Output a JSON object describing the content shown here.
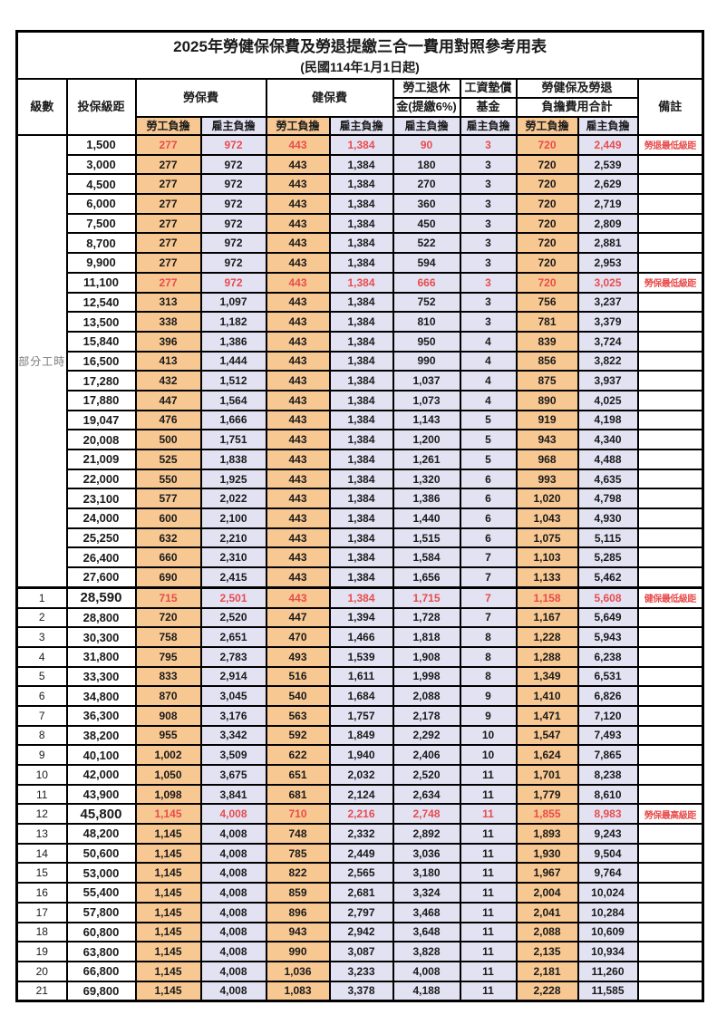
{
  "title": "2025年勞健保保費及勞退提繳三合一費用對照參考用表",
  "subtitle": "(民國114年1月1日起)",
  "header": {
    "level": "級數",
    "bracket": "投保級距",
    "labor_insurance": "勞保費",
    "health_insurance": "健保費",
    "pension_line1": "勞工退休",
    "pension_line2": "金(提繳6%)",
    "arrears_line1": "工資墊償",
    "arrears_line2": "基金",
    "total_line1": "勞健保及勞退",
    "total_line2": "負擔費用合計",
    "remark": "備註",
    "employee_label": "勞工負擔",
    "employer_label": "雇主負擔"
  },
  "part_time_label": "部分工時",
  "colors": {
    "employee_bg": "#F8C893",
    "employer_bg": "#E3E2F3",
    "highlight_red": "#E84C4C",
    "border": "#000000"
  },
  "rows": [
    {
      "level": "",
      "bracket": "1,500",
      "values": [
        "277",
        "972",
        "443",
        "1,384",
        "90",
        "3",
        "720",
        "2,449"
      ],
      "remark": "勞退最低級距",
      "highlight": true,
      "bold": false
    },
    {
      "level": "",
      "bracket": "3,000",
      "values": [
        "277",
        "972",
        "443",
        "1,384",
        "180",
        "3",
        "720",
        "2,539"
      ],
      "remark": "",
      "highlight": false,
      "bold": false
    },
    {
      "level": "",
      "bracket": "4,500",
      "values": [
        "277",
        "972",
        "443",
        "1,384",
        "270",
        "3",
        "720",
        "2,629"
      ],
      "remark": "",
      "highlight": false,
      "bold": false
    },
    {
      "level": "",
      "bracket": "6,000",
      "values": [
        "277",
        "972",
        "443",
        "1,384",
        "360",
        "3",
        "720",
        "2,719"
      ],
      "remark": "",
      "highlight": false,
      "bold": false
    },
    {
      "level": "",
      "bracket": "7,500",
      "values": [
        "277",
        "972",
        "443",
        "1,384",
        "450",
        "3",
        "720",
        "2,809"
      ],
      "remark": "",
      "highlight": false,
      "bold": false
    },
    {
      "level": "",
      "bracket": "8,700",
      "values": [
        "277",
        "972",
        "443",
        "1,384",
        "522",
        "3",
        "720",
        "2,881"
      ],
      "remark": "",
      "highlight": false,
      "bold": false
    },
    {
      "level": "",
      "bracket": "9,900",
      "values": [
        "277",
        "972",
        "443",
        "1,384",
        "594",
        "3",
        "720",
        "2,953"
      ],
      "remark": "",
      "highlight": false,
      "bold": false
    },
    {
      "level": "",
      "bracket": "11,100",
      "values": [
        "277",
        "972",
        "443",
        "1,384",
        "666",
        "3",
        "720",
        "3,025"
      ],
      "remark": "勞保最低級距",
      "highlight": true,
      "bold": false
    },
    {
      "level": "",
      "bracket": "12,540",
      "values": [
        "313",
        "1,097",
        "443",
        "1,384",
        "752",
        "3",
        "756",
        "3,237"
      ],
      "remark": "",
      "highlight": false,
      "bold": false
    },
    {
      "level": "",
      "bracket": "13,500",
      "values": [
        "338",
        "1,182",
        "443",
        "1,384",
        "810",
        "3",
        "781",
        "3,379"
      ],
      "remark": "",
      "highlight": false,
      "bold": false
    },
    {
      "level": "",
      "bracket": "15,840",
      "values": [
        "396",
        "1,386",
        "443",
        "1,384",
        "950",
        "4",
        "839",
        "3,724"
      ],
      "remark": "",
      "highlight": false,
      "bold": false
    },
    {
      "level": "",
      "bracket": "16,500",
      "values": [
        "413",
        "1,444",
        "443",
        "1,384",
        "990",
        "4",
        "856",
        "3,822"
      ],
      "remark": "",
      "highlight": false,
      "bold": false
    },
    {
      "level": "",
      "bracket": "17,280",
      "values": [
        "432",
        "1,512",
        "443",
        "1,384",
        "1,037",
        "4",
        "875",
        "3,937"
      ],
      "remark": "",
      "highlight": false,
      "bold": false
    },
    {
      "level": "",
      "bracket": "17,880",
      "values": [
        "447",
        "1,564",
        "443",
        "1,384",
        "1,073",
        "4",
        "890",
        "4,025"
      ],
      "remark": "",
      "highlight": false,
      "bold": false
    },
    {
      "level": "",
      "bracket": "19,047",
      "values": [
        "476",
        "1,666",
        "443",
        "1,384",
        "1,143",
        "5",
        "919",
        "4,198"
      ],
      "remark": "",
      "highlight": false,
      "bold": false
    },
    {
      "level": "",
      "bracket": "20,008",
      "values": [
        "500",
        "1,751",
        "443",
        "1,384",
        "1,200",
        "5",
        "943",
        "4,340"
      ],
      "remark": "",
      "highlight": false,
      "bold": false
    },
    {
      "level": "",
      "bracket": "21,009",
      "values": [
        "525",
        "1,838",
        "443",
        "1,384",
        "1,261",
        "5",
        "968",
        "4,488"
      ],
      "remark": "",
      "highlight": false,
      "bold": false
    },
    {
      "level": "",
      "bracket": "22,000",
      "values": [
        "550",
        "1,925",
        "443",
        "1,384",
        "1,320",
        "6",
        "993",
        "4,635"
      ],
      "remark": "",
      "highlight": false,
      "bold": false
    },
    {
      "level": "",
      "bracket": "23,100",
      "values": [
        "577",
        "2,022",
        "443",
        "1,384",
        "1,386",
        "6",
        "1,020",
        "4,798"
      ],
      "remark": "",
      "highlight": false,
      "bold": false
    },
    {
      "level": "",
      "bracket": "24,000",
      "values": [
        "600",
        "2,100",
        "443",
        "1,384",
        "1,440",
        "6",
        "1,043",
        "4,930"
      ],
      "remark": "",
      "highlight": false,
      "bold": false
    },
    {
      "level": "",
      "bracket": "25,250",
      "values": [
        "632",
        "2,210",
        "443",
        "1,384",
        "1,515",
        "6",
        "1,075",
        "5,115"
      ],
      "remark": "",
      "highlight": false,
      "bold": false
    },
    {
      "level": "",
      "bracket": "26,400",
      "values": [
        "660",
        "2,310",
        "443",
        "1,384",
        "1,584",
        "7",
        "1,103",
        "5,285"
      ],
      "remark": "",
      "highlight": false,
      "bold": false
    },
    {
      "level": "",
      "bracket": "27,600",
      "values": [
        "690",
        "2,415",
        "443",
        "1,384",
        "1,656",
        "7",
        "1,133",
        "5,462"
      ],
      "remark": "",
      "highlight": false,
      "bold": false
    },
    {
      "level": "1",
      "bracket": "28,590",
      "values": [
        "715",
        "2,501",
        "443",
        "1,384",
        "1,715",
        "7",
        "1,158",
        "5,608"
      ],
      "remark": "健保最低級距",
      "highlight": true,
      "bold": true,
      "thick": true
    },
    {
      "level": "2",
      "bracket": "28,800",
      "values": [
        "720",
        "2,520",
        "447",
        "1,394",
        "1,728",
        "7",
        "1,167",
        "5,649"
      ],
      "remark": "",
      "highlight": false,
      "bold": false
    },
    {
      "level": "3",
      "bracket": "30,300",
      "values": [
        "758",
        "2,651",
        "470",
        "1,466",
        "1,818",
        "8",
        "1,228",
        "5,943"
      ],
      "remark": "",
      "highlight": false,
      "bold": false
    },
    {
      "level": "4",
      "bracket": "31,800",
      "values": [
        "795",
        "2,783",
        "493",
        "1,539",
        "1,908",
        "8",
        "1,288",
        "6,238"
      ],
      "remark": "",
      "highlight": false,
      "bold": false
    },
    {
      "level": "5",
      "bracket": "33,300",
      "values": [
        "833",
        "2,914",
        "516",
        "1,611",
        "1,998",
        "8",
        "1,349",
        "6,531"
      ],
      "remark": "",
      "highlight": false,
      "bold": false
    },
    {
      "level": "6",
      "bracket": "34,800",
      "values": [
        "870",
        "3,045",
        "540",
        "1,684",
        "2,088",
        "9",
        "1,410",
        "6,826"
      ],
      "remark": "",
      "highlight": false,
      "bold": false
    },
    {
      "level": "7",
      "bracket": "36,300",
      "values": [
        "908",
        "3,176",
        "563",
        "1,757",
        "2,178",
        "9",
        "1,471",
        "7,120"
      ],
      "remark": "",
      "highlight": false,
      "bold": false
    },
    {
      "level": "8",
      "bracket": "38,200",
      "values": [
        "955",
        "3,342",
        "592",
        "1,849",
        "2,292",
        "10",
        "1,547",
        "7,493"
      ],
      "remark": "",
      "highlight": false,
      "bold": false
    },
    {
      "level": "9",
      "bracket": "40,100",
      "values": [
        "1,002",
        "3,509",
        "622",
        "1,940",
        "2,406",
        "10",
        "1,624",
        "7,865"
      ],
      "remark": "",
      "highlight": false,
      "bold": false
    },
    {
      "level": "10",
      "bracket": "42,000",
      "values": [
        "1,050",
        "3,675",
        "651",
        "2,032",
        "2,520",
        "11",
        "1,701",
        "8,238"
      ],
      "remark": "",
      "highlight": false,
      "bold": false
    },
    {
      "level": "11",
      "bracket": "43,900",
      "values": [
        "1,098",
        "3,841",
        "681",
        "2,124",
        "2,634",
        "11",
        "1,779",
        "8,610"
      ],
      "remark": "",
      "highlight": false,
      "bold": false
    },
    {
      "level": "12",
      "bracket": "45,800",
      "values": [
        "1,145",
        "4,008",
        "710",
        "2,216",
        "2,748",
        "11",
        "1,855",
        "8,983"
      ],
      "remark": "勞保最高級距",
      "highlight": true,
      "bold": true
    },
    {
      "level": "13",
      "bracket": "48,200",
      "values": [
        "1,145",
        "4,008",
        "748",
        "2,332",
        "2,892",
        "11",
        "1,893",
        "9,243"
      ],
      "remark": "",
      "highlight": false,
      "bold": false
    },
    {
      "level": "14",
      "bracket": "50,600",
      "values": [
        "1,145",
        "4,008",
        "785",
        "2,449",
        "3,036",
        "11",
        "1,930",
        "9,504"
      ],
      "remark": "",
      "highlight": false,
      "bold": false
    },
    {
      "level": "15",
      "bracket": "53,000",
      "values": [
        "1,145",
        "4,008",
        "822",
        "2,565",
        "3,180",
        "11",
        "1,967",
        "9,764"
      ],
      "remark": "",
      "highlight": false,
      "bold": false
    },
    {
      "level": "16",
      "bracket": "55,400",
      "values": [
        "1,145",
        "4,008",
        "859",
        "2,681",
        "3,324",
        "11",
        "2,004",
        "10,024"
      ],
      "remark": "",
      "highlight": false,
      "bold": false
    },
    {
      "level": "17",
      "bracket": "57,800",
      "values": [
        "1,145",
        "4,008",
        "896",
        "2,797",
        "3,468",
        "11",
        "2,041",
        "10,284"
      ],
      "remark": "",
      "highlight": false,
      "bold": false
    },
    {
      "level": "18",
      "bracket": "60,800",
      "values": [
        "1,145",
        "4,008",
        "943",
        "2,942",
        "3,648",
        "11",
        "2,088",
        "10,609"
      ],
      "remark": "",
      "highlight": false,
      "bold": false
    },
    {
      "level": "19",
      "bracket": "63,800",
      "values": [
        "1,145",
        "4,008",
        "990",
        "3,087",
        "3,828",
        "11",
        "2,135",
        "10,934"
      ],
      "remark": "",
      "highlight": false,
      "bold": false
    },
    {
      "level": "20",
      "bracket": "66,800",
      "values": [
        "1,145",
        "4,008",
        "1,036",
        "3,233",
        "4,008",
        "11",
        "2,181",
        "11,260"
      ],
      "remark": "",
      "highlight": false,
      "bold": false
    },
    {
      "level": "21",
      "bracket": "69,800",
      "values": [
        "1,145",
        "4,008",
        "1,083",
        "3,378",
        "4,188",
        "11",
        "2,228",
        "11,585"
      ],
      "remark": "",
      "highlight": false,
      "bold": false
    }
  ]
}
